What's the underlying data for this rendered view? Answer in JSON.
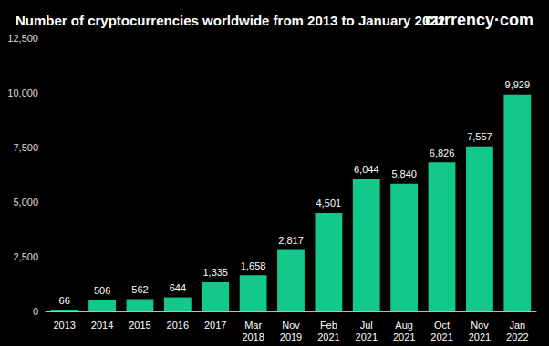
{
  "chart_data": {
    "type": "bar",
    "title": "Number of cryptocurrencies worldwide from 2013 to January 2022",
    "annotation": "currency·com",
    "categories": [
      "2013",
      "2014",
      "2015",
      "2016",
      "2017",
      "Mar 2018",
      "Nov 2019",
      "Feb 2021",
      "Jul 2021",
      "Aug 2021",
      "Oct 2021",
      "Nov 2021",
      "Jan 2022"
    ],
    "values": [
      66,
      506,
      562,
      644,
      1335,
      1658,
      2817,
      4501,
      6044,
      5840,
      6826,
      7557,
      9929
    ],
    "value_labels": [
      "66",
      "506",
      "562",
      "644",
      "1,335",
      "1,658",
      "2,817",
      "4,501",
      "6,044",
      "5,840",
      "6,826",
      "7,557",
      "9,929"
    ],
    "color": "#12c98b",
    "ylim": [
      0,
      12500
    ],
    "yticks": [
      0,
      {
        "value": 2500,
        "label": "2,500"
      },
      {
        "value": 5000,
        "label": "5,000"
      },
      {
        "value": 7500,
        "label": "7,500"
      },
      {
        "value": 10000,
        "label": "10,000"
      },
      {
        "value": 12500,
        "label": "12,500"
      }
    ],
    "grid": false,
    "data_labels": true
  }
}
